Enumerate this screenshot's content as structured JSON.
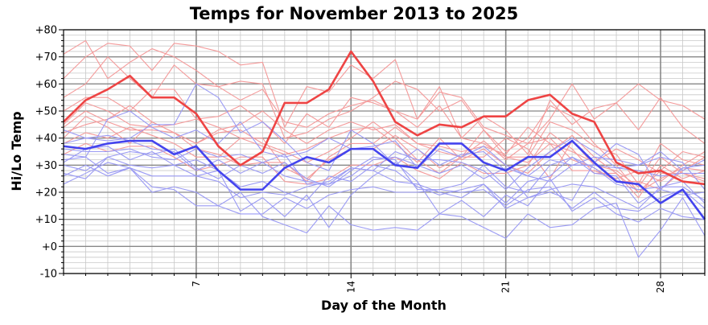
{
  "chart_data": {
    "type": "line",
    "title": "Temps for November 2013 to 2025",
    "xlabel": "Day of the Month",
    "ylabel": "Hi/Lo Temp",
    "xlim": [
      1,
      30
    ],
    "ylim": [
      -10,
      80
    ],
    "x_ticks": [
      7,
      14,
      21,
      28
    ],
    "x_tick_labels": [
      "7",
      "14",
      "21",
      "28"
    ],
    "y_ticks": [
      -10,
      0,
      10,
      20,
      30,
      40,
      50,
      60,
      70,
      80
    ],
    "y_tick_labels": [
      "-10",
      "+0",
      "+10",
      "+20",
      "+30",
      "+40",
      "+50",
      "+60",
      "+70",
      "+80"
    ],
    "grid": true,
    "colors": {
      "current_high": "#ee4444",
      "current_low": "#4444ee",
      "past_high": "#f49a9a",
      "past_low": "#9a9af4",
      "major_grid": "#888888",
      "minor_grid": "#c8c8c8"
    },
    "x": [
      1,
      2,
      3,
      4,
      5,
      6,
      7,
      8,
      9,
      10,
      11,
      12,
      13,
      14,
      15,
      16,
      17,
      18,
      19,
      20,
      21,
      22,
      23,
      24,
      25,
      26,
      27,
      28,
      29,
      30
    ],
    "current_series": [
      {
        "role": "high",
        "values": [
          46,
          54,
          58,
          63,
          55,
          55,
          49,
          37,
          30,
          35,
          53,
          53,
          58,
          72,
          61,
          46,
          41,
          45,
          44,
          48,
          48,
          54,
          56,
          49,
          46,
          31,
          27,
          28,
          24,
          23
        ]
      },
      {
        "role": "low",
        "values": [
          37,
          36,
          38,
          39,
          39,
          34,
          37,
          28,
          21,
          21,
          29,
          33,
          31,
          36,
          36,
          30,
          29,
          38,
          38,
          31,
          28,
          33,
          33,
          39,
          31,
          24,
          23,
          16,
          21,
          10
        ]
      }
    ],
    "past_series": [
      {
        "role": "high",
        "values": [
          71,
          76,
          62,
          68,
          73,
          70,
          65,
          59,
          54,
          58,
          46,
          44,
          49,
          52,
          54,
          50,
          47,
          57,
          55,
          44,
          41,
          38,
          47,
          60,
          47,
          53,
          43,
          55,
          44,
          38
        ]
      },
      {
        "role": "high",
        "values": [
          62,
          70,
          75,
          74,
          65,
          75,
          74,
          72,
          67,
          68,
          44,
          59,
          57,
          67,
          62,
          69,
          47,
          59,
          40,
          48,
          43,
          34,
          54,
          45,
          51,
          53,
          60,
          54,
          52,
          47
        ]
      },
      {
        "role": "high",
        "values": [
          55,
          60,
          70,
          62,
          55,
          67,
          60,
          59,
          61,
          60,
          40,
          42,
          47,
          50,
          55,
          61,
          58,
          50,
          54,
          43,
          35,
          40,
          52,
          48,
          38,
          30,
          20,
          28,
          35,
          33
        ]
      },
      {
        "role": "high",
        "values": [
          50,
          55,
          55,
          50,
          58,
          58,
          47,
          48,
          52,
          46,
          38,
          49,
          44,
          55,
          53,
          50,
          44,
          52,
          40,
          38,
          33,
          33,
          46,
          43,
          37,
          34,
          23,
          38,
          32,
          30
        ]
      },
      {
        "role": "high",
        "values": [
          45,
          53,
          50,
          45,
          44,
          45,
          47,
          44,
          40,
          37,
          34,
          36,
          40,
          43,
          44,
          38,
          31,
          40,
          32,
          36,
          30,
          27,
          35,
          41,
          33,
          27,
          18,
          30,
          25,
          28
        ]
      },
      {
        "role": "high",
        "values": [
          42,
          45,
          47,
          52,
          46,
          42,
          36,
          34,
          30,
          31,
          31,
          24,
          33,
          38,
          38,
          44,
          38,
          37,
          35,
          37,
          34,
          44,
          38,
          28,
          28,
          25,
          28,
          24,
          30,
          35
        ]
      },
      {
        "role": "high",
        "values": [
          38,
          42,
          40,
          44,
          41,
          38,
          33,
          33,
          40,
          40,
          29,
          25,
          32,
          36,
          36,
          41,
          36,
          29,
          33,
          39,
          32,
          38,
          40,
          32,
          29,
          24,
          24,
          21,
          28,
          33
        ]
      },
      {
        "role": "high",
        "values": [
          34,
          38,
          35,
          37,
          37,
          33,
          28,
          30,
          33,
          33,
          24,
          23,
          25,
          30,
          30,
          33,
          28,
          25,
          31,
          27,
          27,
          30,
          42,
          36,
          27,
          27,
          20,
          25,
          29,
          28
        ]
      },
      {
        "role": "high",
        "values": [
          40,
          48,
          44,
          38,
          46,
          42,
          38,
          42,
          43,
          38,
          35,
          31,
          35,
          40,
          46,
          40,
          32,
          27,
          33,
          33,
          40,
          36,
          25,
          39,
          30,
          28,
          22,
          33,
          27,
          25
        ]
      },
      {
        "role": "high",
        "values": [
          44,
          50,
          46,
          43,
          43,
          42,
          38,
          43,
          45,
          50,
          43,
          38,
          43,
          46,
          43,
          45,
          38,
          35,
          33,
          43,
          33,
          31,
          38,
          35,
          31,
          36,
          32,
          27,
          27,
          24
        ]
      },
      {
        "role": "low",
        "values": [
          43,
          40,
          39,
          40,
          45,
          45,
          60,
          55,
          42,
          46,
          39,
          31,
          28,
          43,
          38,
          30,
          36,
          30,
          34,
          35,
          28,
          18,
          20,
          17,
          31,
          38,
          34,
          21,
          29,
          30
        ]
      },
      {
        "role": "low",
        "values": [
          34,
          33,
          47,
          50,
          44,
          40,
          43,
          38,
          46,
          35,
          33,
          35,
          40,
          36,
          37,
          39,
          29,
          36,
          33,
          37,
          30,
          26,
          24,
          30,
          30,
          29,
          30,
          33,
          31,
          21
        ]
      },
      {
        "role": "low",
        "values": [
          30,
          28,
          33,
          35,
          34,
          36,
          29,
          25,
          30,
          27,
          31,
          25,
          22,
          28,
          33,
          32,
          21,
          21,
          23,
          30,
          22,
          20,
          30,
          33,
          29,
          23,
          21,
          22,
          24,
          16
        ]
      },
      {
        "role": "low",
        "values": [
          23,
          27,
          31,
          29,
          26,
          26,
          26,
          24,
          18,
          20,
          19,
          22,
          24,
          29,
          28,
          24,
          23,
          20,
          18,
          23,
          14,
          18,
          21,
          23,
          22,
          18,
          14,
          22,
          22,
          17
        ]
      },
      {
        "role": "low",
        "values": [
          26,
          30,
          26,
          29,
          20,
          22,
          20,
          15,
          12,
          12,
          18,
          14,
          19,
          21,
          22,
          20,
          20,
          21,
          20,
          21,
          15,
          21,
          22,
          14,
          20,
          14,
          13,
          18,
          21,
          14
        ]
      },
      {
        "role": "low",
        "values": [
          32,
          33,
          27,
          29,
          22,
          21,
          15,
          15,
          20,
          11,
          8,
          5,
          15,
          8,
          6,
          7,
          6,
          12,
          11,
          7,
          3,
          12,
          7,
          8,
          14,
          16,
          -4,
          6,
          18,
          4
        ]
      },
      {
        "role": "low",
        "values": [
          27,
          25,
          33,
          30,
          29,
          30,
          26,
          28,
          13,
          18,
          11,
          19,
          7,
          19,
          26,
          31,
          24,
          12,
          17,
          11,
          19,
          15,
          25,
          13,
          18,
          12,
          9,
          14,
          11,
          10
        ]
      },
      {
        "role": "low",
        "values": [
          31,
          36,
          37,
          32,
          35,
          30,
          32,
          28,
          22,
          24,
          20,
          17,
          26,
          24,
          30,
          28,
          22,
          19,
          21,
          23,
          16,
          24,
          26,
          33,
          27,
          26,
          16,
          21,
          19,
          20
        ]
      },
      {
        "role": "low",
        "values": [
          36,
          35,
          35,
          36,
          33,
          32,
          36,
          33,
          34,
          31,
          26,
          24,
          23,
          29,
          28,
          35,
          32,
          32,
          31,
          28,
          21,
          29,
          35,
          40,
          35,
          29,
          28,
          26,
          27,
          27
        ]
      },
      {
        "role": "low",
        "values": [
          38,
          40,
          41,
          39,
          36,
          35,
          28,
          32,
          27,
          31,
          34,
          23,
          23,
          26,
          32,
          33,
          30,
          27,
          30,
          25,
          29,
          26,
          32,
          30,
          33,
          32,
          30,
          35,
          28,
          32
        ]
      }
    ]
  }
}
